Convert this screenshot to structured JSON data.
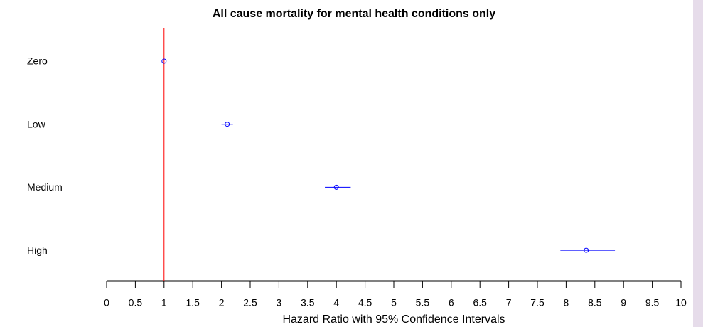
{
  "chart_data": {
    "type": "forest",
    "title": "All cause mortality for mental health conditions only",
    "x_label": "Hazard Ratio with 95% Confidence Intervals",
    "categories": [
      "Zero",
      "Low",
      "Medium",
      "High"
    ],
    "values": [
      1,
      2.1,
      4.0,
      8.35
    ],
    "lower": [
      1,
      2.0,
      3.8,
      7.9
    ],
    "upper": [
      1,
      2.2,
      4.25,
      8.85
    ],
    "color": "#0000ff",
    "reference_line": 1,
    "reference_color": "#ff0000",
    "xlim": [
      0,
      10
    ],
    "xticks": [
      0,
      0.5,
      1,
      1.5,
      2,
      2.5,
      3,
      3.5,
      4,
      4.5,
      5,
      5.5,
      6,
      6.5,
      7,
      7.5,
      8,
      8.5,
      9,
      9.5,
      10
    ]
  }
}
